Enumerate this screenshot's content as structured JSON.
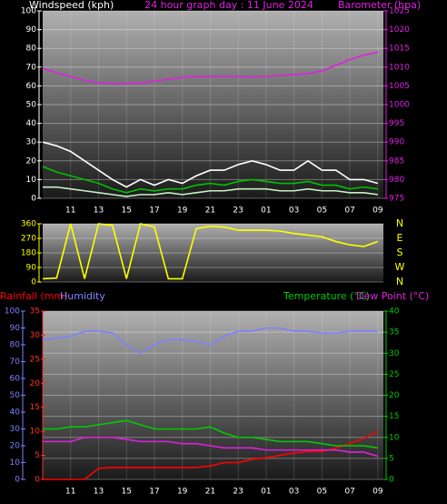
{
  "chart_data": [
    {
      "type": "line",
      "title": "24 hour graph day : 11 June 2024",
      "y_label": "Windspeed (kph)",
      "y2_label": "Barometer (hpa)",
      "x": [
        0,
        1,
        2,
        3,
        4,
        5,
        6,
        7,
        8,
        9,
        10,
        11,
        12,
        13,
        14,
        15,
        16,
        17,
        18,
        19,
        20,
        21,
        22,
        23,
        24
      ],
      "xlim": [
        0,
        24.4
      ],
      "xticks": [
        {
          "value": 2,
          "label": "11"
        },
        {
          "value": 4,
          "label": "13"
        },
        {
          "value": 6,
          "label": "15"
        },
        {
          "value": 8,
          "label": "17"
        },
        {
          "value": 10,
          "label": "19"
        },
        {
          "value": 12,
          "label": "21"
        },
        {
          "value": 14,
          "label": "23"
        },
        {
          "value": 16,
          "label": "01"
        },
        {
          "value": 18,
          "label": "03"
        },
        {
          "value": 20,
          "label": "05"
        },
        {
          "value": 22,
          "label": "07"
        },
        {
          "value": 24,
          "label": "09"
        }
      ],
      "ylim": [
        0,
        100
      ],
      "yticks": [
        0,
        10,
        20,
        30,
        40,
        50,
        60,
        70,
        80,
        90,
        100
      ],
      "y2lim": [
        975,
        1025
      ],
      "y2ticks": [
        975,
        980,
        985,
        990,
        995,
        1000,
        1005,
        1010,
        1015,
        1020,
        1025
      ],
      "grid": "y",
      "series": [
        {
          "color": "#ffffff",
          "values": [
            30,
            28,
            25,
            20,
            15,
            10,
            6,
            10,
            7,
            10,
            8,
            12,
            15,
            15,
            18,
            20,
            18,
            15,
            15,
            20,
            15,
            15,
            10,
            10,
            8
          ]
        },
        {
          "color": "#c8f0c8",
          "values": [
            6,
            6,
            5,
            4,
            3,
            2,
            1,
            2,
            2,
            3,
            2,
            3,
            4,
            4,
            5,
            5,
            5,
            4,
            4,
            5,
            4,
            4,
            3,
            3,
            2
          ]
        },
        {
          "color": "#00c000",
          "values": [
            17,
            14,
            12,
            10,
            8,
            5,
            3,
            5,
            4,
            5,
            5,
            7,
            8,
            7,
            9,
            10,
            9,
            8,
            8,
            9,
            7,
            7,
            5,
            6,
            5
          ]
        },
        {
          "color": "#e020e0",
          "axis": "y2",
          "values": [
            1009.7,
            1008.5,
            1007.5,
            1006.5,
            1005.8,
            1005.6,
            1005.6,
            1005.8,
            1006.3,
            1006.8,
            1007.2,
            1007.5,
            1007.5,
            1007.6,
            1007.5,
            1007.4,
            1007.5,
            1007.8,
            1008,
            1008.3,
            1009,
            1010.5,
            1012,
            1013.2,
            1014
          ]
        }
      ]
    },
    {
      "type": "line",
      "compass_labels": [
        "N",
        "W",
        "S",
        "E",
        "N"
      ],
      "x": [
        0,
        1,
        2,
        3,
        4,
        5,
        6,
        7,
        8,
        9,
        10,
        11,
        12,
        13,
        14,
        15,
        16,
        17,
        18,
        19,
        20,
        21,
        22,
        23,
        24
      ],
      "xlim": [
        0,
        24.4
      ],
      "ylim": [
        0,
        360
      ],
      "yticks": [
        0,
        90,
        180,
        270,
        360
      ],
      "grid": "y",
      "series": [
        {
          "color": "#ffff00",
          "values": [
            20,
            25,
            360,
            20,
            360,
            350,
            20,
            360,
            340,
            20,
            20,
            330,
            345,
            340,
            320,
            320,
            320,
            315,
            300,
            290,
            280,
            250,
            230,
            220,
            250
          ]
        }
      ]
    },
    {
      "type": "line",
      "x": [
        0,
        1,
        2,
        3,
        4,
        5,
        6,
        7,
        8,
        9,
        10,
        11,
        12,
        13,
        14,
        15,
        16,
        17,
        18,
        19,
        20,
        21,
        22,
        23,
        24
      ],
      "xlim": [
        0,
        24.4
      ],
      "xticks": [
        {
          "value": 2,
          "label": "11"
        },
        {
          "value": 4,
          "label": "13"
        },
        {
          "value": 6,
          "label": "15"
        },
        {
          "value": 8,
          "label": "17"
        },
        {
          "value": 10,
          "label": "19"
        },
        {
          "value": 12,
          "label": "21"
        },
        {
          "value": 14,
          "label": "23"
        },
        {
          "value": 16,
          "label": "01"
        },
        {
          "value": 18,
          "label": "03"
        },
        {
          "value": 20,
          "label": "05"
        },
        {
          "value": 22,
          "label": "07"
        },
        {
          "value": 24,
          "label": "09"
        }
      ],
      "ylim": [
        0,
        100
      ],
      "yticks": [
        0,
        10,
        20,
        30,
        40,
        50,
        60,
        70,
        80,
        90,
        100
      ],
      "y3lim": [
        0,
        35
      ],
      "y3ticks": [
        0,
        5,
        10,
        15,
        20,
        25,
        30,
        35
      ],
      "y2lim": [
        0,
        40
      ],
      "y2ticks": [
        0,
        5,
        10,
        15,
        20,
        25,
        30,
        35,
        40
      ],
      "grid": "y2",
      "series": [
        {
          "name": "Rainfall (mm)",
          "color": "#ff0000",
          "axis": "y3",
          "values": [
            0,
            0,
            0,
            0,
            2.3,
            2.5,
            2.5,
            2.5,
            2.5,
            2.5,
            2.5,
            2.5,
            2.8,
            3.5,
            3.5,
            4.2,
            4.5,
            5,
            5.5,
            5.8,
            5.8,
            6.5,
            7.5,
            8.5,
            10
          ]
        },
        {
          "name": "Humidity",
          "color": "#8080ff",
          "values": [
            83,
            84,
            85,
            88,
            88,
            87,
            80,
            75,
            80,
            83,
            83,
            82,
            80,
            85,
            88,
            88,
            90,
            90,
            88,
            88,
            87,
            87,
            88,
            88,
            88
          ]
        },
        {
          "name": "Temperature (°C)",
          "color": "#00cc00",
          "axis": "y2",
          "values": [
            12,
            12,
            12.5,
            12.5,
            13,
            13.5,
            14,
            13,
            12,
            12,
            12,
            12,
            12.5,
            11,
            10,
            10,
            9.5,
            9,
            9,
            9,
            8.5,
            8,
            8,
            8,
            7.5
          ]
        },
        {
          "name": "Dew Point (°C)",
          "color": "#e020e0",
          "axis": "y2",
          "values": [
            9,
            9,
            9,
            10,
            10,
            10,
            9.5,
            9,
            9,
            9,
            8.5,
            8.5,
            8,
            7.5,
            7.5,
            7.5,
            7,
            7,
            7,
            7,
            7,
            7,
            6.5,
            6.5,
            5.5
          ]
        }
      ]
    }
  ]
}
